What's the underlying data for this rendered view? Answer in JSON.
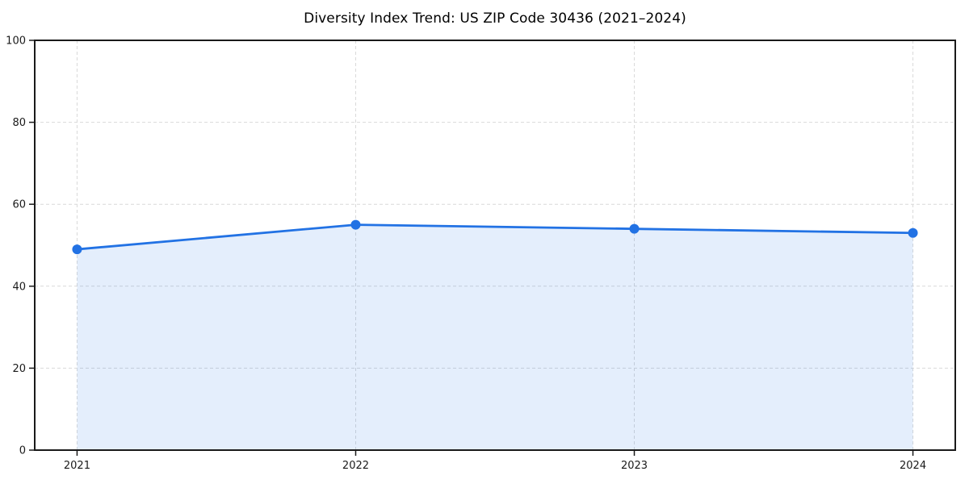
{
  "header": {
    "title": "Diversity Index Trend: US ZIP Code 30436 (2021–2024)"
  },
  "chart_data": {
    "type": "line",
    "title": "Diversity Index Trend: US ZIP Code 30436 (2021–2024)",
    "categories": [
      "2021",
      "2022",
      "2023",
      "2024"
    ],
    "series": [
      {
        "name": "Diversity Index",
        "values": [
          49,
          55,
          54,
          53
        ]
      }
    ],
    "xlabel": "",
    "ylabel": "",
    "ylim": [
      0,
      100
    ],
    "y_ticks": [
      0,
      20,
      40,
      60,
      80,
      100
    ],
    "grid": "dashed-both-axes",
    "legend": "none",
    "area_fill": true,
    "marker": "circle",
    "colors": {
      "line": "#2272e4",
      "marker": "#2272e4",
      "area_fill_opacity": 0.12,
      "grid": "#d9d9d9",
      "spine": "#1a1a1a",
      "tick_label": "#1a1a1a",
      "background": "#ffffff"
    }
  }
}
